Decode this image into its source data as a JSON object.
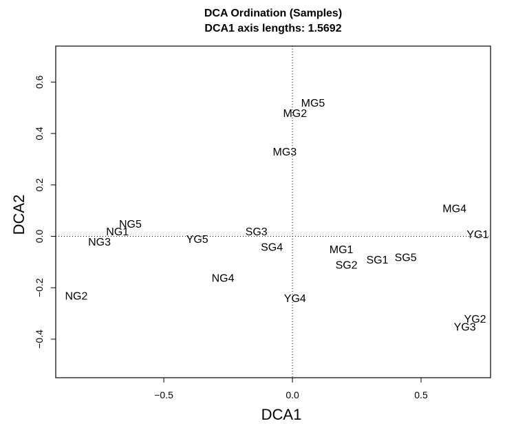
{
  "chart_data": {
    "type": "scatter",
    "title": "DCA Ordination (Samples)",
    "subtitle": "DCA1 axis lengths: 1.5692",
    "xlabel": "DCA1",
    "ylabel": "DCA2",
    "xlim": [
      -0.92,
      0.77
    ],
    "ylim": [
      -0.55,
      0.74
    ],
    "xticks": [
      -0.5,
      0.0,
      0.5
    ],
    "xtick_labels": [
      "−0.5",
      "0.0",
      "0.5"
    ],
    "yticks": [
      -0.4,
      -0.2,
      0.0,
      0.2,
      0.4,
      0.6
    ],
    "ytick_labels": [
      "−0.4",
      "−0.2",
      "0.0",
      "0.2",
      "0.4",
      "0.6"
    ],
    "reference_lines": {
      "x": 0,
      "y": 0,
      "style": "dotted"
    },
    "grid": false,
    "points": [
      {
        "label": "MG5",
        "x": 0.08,
        "y": 0.52
      },
      {
        "label": "MG2",
        "x": 0.01,
        "y": 0.48
      },
      {
        "label": "MG3",
        "x": -0.03,
        "y": 0.33
      },
      {
        "label": "MG4",
        "x": 0.63,
        "y": 0.11
      },
      {
        "label": "YG1",
        "x": 0.72,
        "y": 0.01
      },
      {
        "label": "NG5",
        "x": -0.63,
        "y": 0.05
      },
      {
        "label": "NG1",
        "x": -0.68,
        "y": 0.02
      },
      {
        "label": "NG3",
        "x": -0.75,
        "y": -0.02
      },
      {
        "label": "YG5",
        "x": -0.37,
        "y": -0.01
      },
      {
        "label": "SG3",
        "x": -0.14,
        "y": 0.02
      },
      {
        "label": "SG4",
        "x": -0.08,
        "y": -0.04
      },
      {
        "label": "MG1",
        "x": 0.19,
        "y": -0.05
      },
      {
        "label": "SG2",
        "x": 0.21,
        "y": -0.11
      },
      {
        "label": "SG1",
        "x": 0.33,
        "y": -0.09
      },
      {
        "label": "SG5",
        "x": 0.44,
        "y": -0.08
      },
      {
        "label": "NG4",
        "x": -0.27,
        "y": -0.16
      },
      {
        "label": "NG2",
        "x": -0.84,
        "y": -0.23
      },
      {
        "label": "YG4",
        "x": 0.01,
        "y": -0.24
      },
      {
        "label": "YG2",
        "x": 0.71,
        "y": -0.32
      },
      {
        "label": "YG3",
        "x": 0.67,
        "y": -0.35
      }
    ]
  }
}
